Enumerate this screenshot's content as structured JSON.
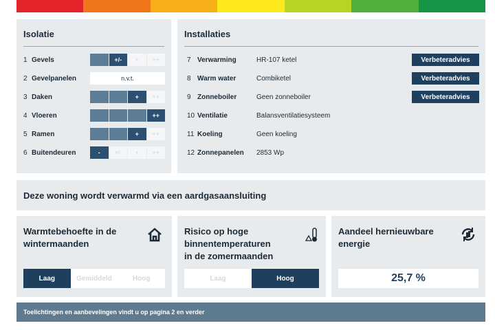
{
  "isolatie": {
    "title": "Isolatie",
    "scale": [
      "-",
      "+/-",
      "+",
      "++"
    ],
    "rows": [
      {
        "number": "1",
        "label": "Gevels",
        "rating": "+/-"
      },
      {
        "number": "2",
        "label": "Gevelpanelen",
        "rating": "n.v.t."
      },
      {
        "number": "3",
        "label": "Daken",
        "rating": "+"
      },
      {
        "number": "4",
        "label": "Vloeren",
        "rating": "++"
      },
      {
        "number": "5",
        "label": "Ramen",
        "rating": "+"
      },
      {
        "number": "6",
        "label": "Buitendeuren",
        "rating": "-"
      }
    ]
  },
  "installaties": {
    "title": "Installaties",
    "rows": [
      {
        "number": "7",
        "label": "Verwarming",
        "value": "HR-107 ketel",
        "button": "Verbeteradvies"
      },
      {
        "number": "8",
        "label": "Warm water",
        "value": "Combiketel",
        "button": "Verbeteradvies"
      },
      {
        "number": "9",
        "label": "Zonneboiler",
        "value": "Geen zonneboiler",
        "button": "Verbeteradvies"
      },
      {
        "number": "10",
        "label": "Ventilatie",
        "value": "Balansventilatiesysteem"
      },
      {
        "number": "11",
        "label": "Koeling",
        "value": "Geen koeling"
      },
      {
        "number": "12",
        "label": "Zonnepanelen",
        "value": "2853 Wp"
      }
    ]
  },
  "banner": "Deze woning wordt verwarmd via een aardgasaansluiting",
  "cards": [
    {
      "title": "Warmtebehoefte in de wintermaanden",
      "options": [
        "Laag",
        "Gemiddeld",
        "Hoog"
      ],
      "selected": 0
    },
    {
      "title": "Risico op hoge binnentemperaturen in de zomermaanden",
      "options": [
        "Laag",
        "Hoog"
      ],
      "selected": 1
    },
    {
      "title": "Aandeel hernieuwbare energie",
      "value": "25,7 %"
    }
  ],
  "footer": "Toelichtingen en aanbevelingen vindt u op pagina 2 en verder"
}
